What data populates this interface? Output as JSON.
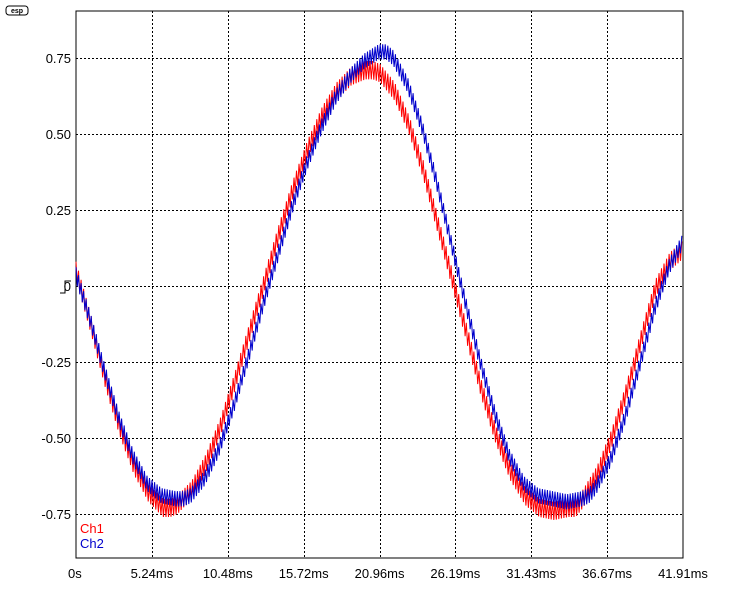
{
  "logo": {
    "text": "esp"
  },
  "chart_data": {
    "type": "line",
    "x_unit": "ms",
    "xlim": [
      0,
      41.91
    ],
    "ylim": [
      -0.9,
      0.9
    ],
    "grid": true,
    "legend_position": "bottom-left",
    "x_tick_labels": [
      "0s",
      "5.24ms",
      "10.48ms",
      "15.72ms",
      "20.96ms",
      "26.19ms",
      "31.43ms",
      "36.67ms",
      "41.91ms"
    ],
    "x_tick_values": [
      0,
      5.24,
      10.48,
      15.72,
      20.96,
      26.19,
      31.43,
      36.67,
      41.91
    ],
    "y_tick_labels": [
      "0.75",
      "0.50",
      "0.25",
      "0",
      "-0.25",
      "-0.50",
      "-0.75"
    ],
    "y_tick_values": [
      0.75,
      0.5,
      0.25,
      0,
      -0.25,
      -0.5,
      -0.75
    ],
    "trigger_marker": "rising-edge",
    "series": [
      {
        "name": "Ch1",
        "color": "#ff0000",
        "ripple_amplitude": 0.03,
        "x": [
          0,
          1,
          2,
          3,
          4,
          5,
          6,
          6.5,
          7,
          8,
          9,
          10,
          11,
          12,
          13,
          14,
          15,
          16,
          17,
          18,
          19,
          20,
          20.5,
          21,
          22,
          23,
          24,
          25,
          26,
          27,
          28,
          29,
          30,
          31,
          32,
          33,
          34,
          34.5,
          35,
          36,
          37,
          38,
          39,
          40,
          41,
          41.91
        ],
        "values": [
          0.05,
          -0.12,
          -0.3,
          -0.46,
          -0.59,
          -0.68,
          -0.73,
          -0.73,
          -0.72,
          -0.67,
          -0.58,
          -0.46,
          -0.31,
          -0.15,
          0.01,
          0.17,
          0.32,
          0.45,
          0.56,
          0.64,
          0.69,
          0.71,
          0.71,
          0.7,
          0.64,
          0.53,
          0.38,
          0.2,
          0.02,
          -0.16,
          -0.34,
          -0.49,
          -0.61,
          -0.69,
          -0.73,
          -0.74,
          -0.73,
          -0.73,
          -0.7,
          -0.62,
          -0.5,
          -0.35,
          -0.18,
          -0.01,
          0.08,
          0.12
        ]
      },
      {
        "name": "Ch2",
        "color": "#0000cc",
        "ripple_amplitude": 0.025,
        "x": [
          0,
          1,
          2,
          3,
          4,
          5,
          6,
          7,
          7.5,
          8,
          9,
          10,
          11,
          12,
          13,
          14,
          15,
          16,
          17,
          18,
          19,
          20,
          21,
          21.5,
          22,
          23,
          24,
          25,
          26,
          27,
          28,
          29,
          30,
          31,
          32,
          33,
          34,
          35,
          35.5,
          36,
          37,
          38,
          39,
          40,
          41,
          41.91
        ],
        "values": [
          0.05,
          -0.1,
          -0.27,
          -0.43,
          -0.56,
          -0.65,
          -0.69,
          -0.7,
          -0.7,
          -0.69,
          -0.63,
          -0.53,
          -0.39,
          -0.23,
          -0.06,
          0.1,
          0.26,
          0.4,
          0.52,
          0.62,
          0.69,
          0.74,
          0.77,
          0.77,
          0.75,
          0.66,
          0.52,
          0.34,
          0.14,
          -0.06,
          -0.25,
          -0.42,
          -0.56,
          -0.65,
          -0.69,
          -0.7,
          -0.71,
          -0.7,
          -0.69,
          -0.66,
          -0.57,
          -0.43,
          -0.26,
          -0.08,
          0.06,
          0.14
        ]
      }
    ]
  }
}
